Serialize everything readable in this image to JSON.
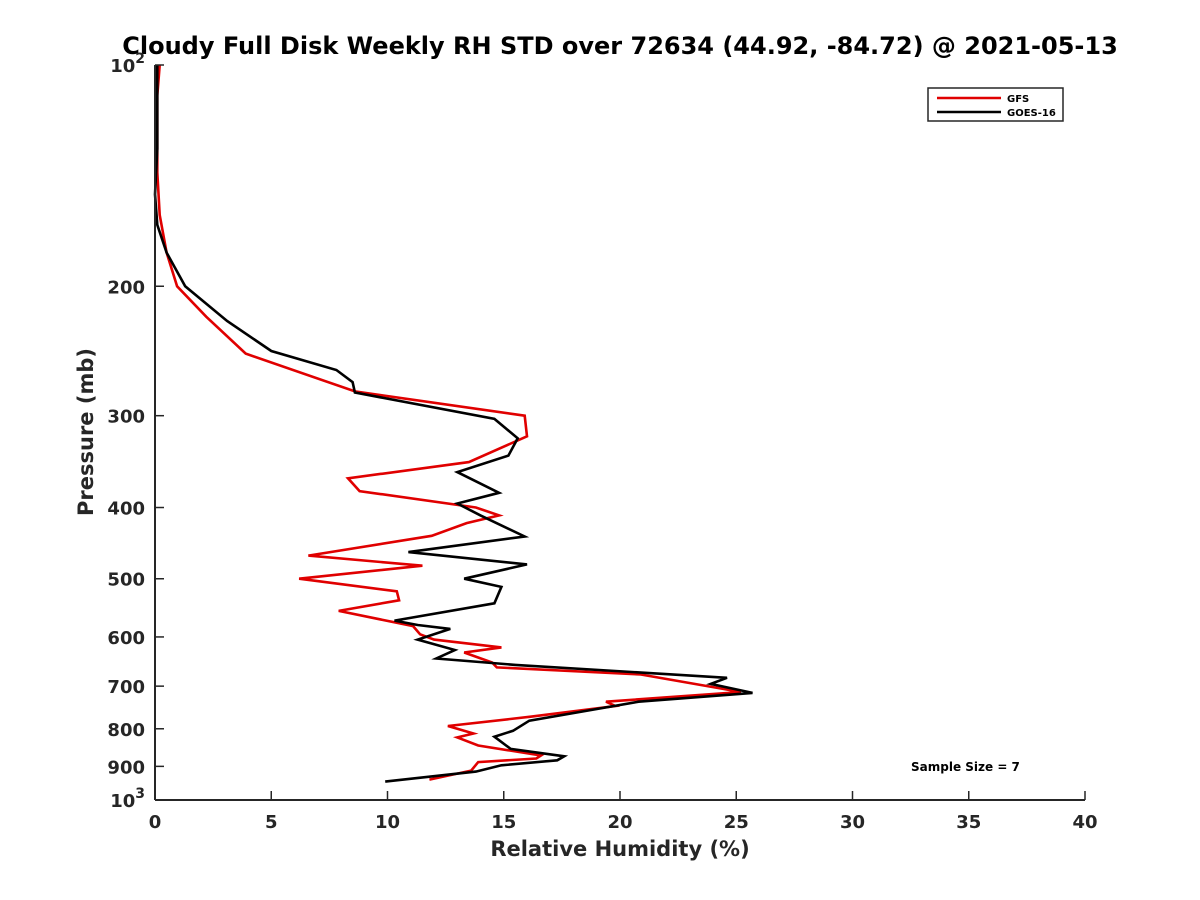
{
  "chart_data": {
    "type": "line",
    "title": "Cloudy Full Disk Weekly RH STD over 72634 (44.92, -84.72) @ 2021-05-13",
    "xlabel": "Relative Humidity (%)",
    "ylabel": "Pressure (mb)",
    "xlim": [
      0,
      40
    ],
    "ylim": [
      100,
      1000
    ],
    "yscale": "log",
    "y_reversed": true,
    "grid": false,
    "legend_position": "top-right",
    "x_ticks": [
      "0",
      "5",
      "10",
      "15",
      "20",
      "25",
      "30",
      "35",
      "40"
    ],
    "y_ticks": [
      {
        "value": 100,
        "base": "10",
        "exp": "2"
      },
      {
        "value": 200,
        "label": "200"
      },
      {
        "value": 300,
        "label": "300"
      },
      {
        "value": 400,
        "label": "400"
      },
      {
        "value": 500,
        "label": "500"
      },
      {
        "value": 600,
        "label": "600"
      },
      {
        "value": 700,
        "label": "700"
      },
      {
        "value": 800,
        "label": "800"
      },
      {
        "value": 900,
        "label": "900"
      },
      {
        "value": 1000,
        "base": "10",
        "exp": "3"
      }
    ],
    "series": [
      {
        "name": "GFS",
        "color": "#e00000",
        "points": [
          [
            0.2,
            100
          ],
          [
            0.1,
            110
          ],
          [
            0.1,
            125
          ],
          [
            0.1,
            140
          ],
          [
            0.2,
            160
          ],
          [
            0.5,
            180
          ],
          [
            0.95,
            200
          ],
          [
            2.2,
            220
          ],
          [
            3.9,
            247
          ],
          [
            8.6,
            278
          ],
          [
            15.9,
            300
          ],
          [
            16.0,
            320
          ],
          [
            13.5,
            347
          ],
          [
            8.3,
            365
          ],
          [
            8.8,
            380
          ],
          [
            13.8,
            400
          ],
          [
            14.8,
            410
          ],
          [
            13.4,
            420
          ],
          [
            11.9,
            437
          ],
          [
            6.6,
            465
          ],
          [
            11.5,
            480
          ],
          [
            6.2,
            500
          ],
          [
            10.4,
            520
          ],
          [
            10.5,
            535
          ],
          [
            7.9,
            553
          ],
          [
            11.1,
            580
          ],
          [
            11.4,
            595
          ],
          [
            12.0,
            605
          ],
          [
            14.9,
            620
          ],
          [
            13.3,
            630
          ],
          [
            14.5,
            650
          ],
          [
            14.7,
            660
          ],
          [
            20.9,
            675
          ],
          [
            25.2,
            713
          ],
          [
            19.4,
            735
          ],
          [
            19.8,
            745
          ],
          [
            16.2,
            770
          ],
          [
            12.6,
            793
          ],
          [
            13.7,
            812
          ],
          [
            13.0,
            822
          ],
          [
            13.9,
            843
          ],
          [
            16.6,
            870
          ],
          [
            16.4,
            878
          ],
          [
            13.9,
            888
          ],
          [
            13.6,
            912
          ],
          [
            11.8,
            938
          ]
        ]
      },
      {
        "name": "GOES-16",
        "color": "#000000",
        "points": [
          [
            0.1,
            100
          ],
          [
            0.1,
            115
          ],
          [
            0.1,
            130
          ],
          [
            0.0,
            150
          ],
          [
            0.1,
            165
          ],
          [
            0.5,
            180
          ],
          [
            1.3,
            200
          ],
          [
            3.1,
            223
          ],
          [
            5.0,
            245
          ],
          [
            7.8,
            260
          ],
          [
            8.5,
            270
          ],
          [
            8.6,
            279
          ],
          [
            14.6,
            303
          ],
          [
            15.6,
            322
          ],
          [
            15.2,
            340
          ],
          [
            13.0,
            358
          ],
          [
            14.8,
            382
          ],
          [
            13.0,
            395
          ],
          [
            14.0,
            410
          ],
          [
            15.9,
            438
          ],
          [
            10.9,
            460
          ],
          [
            16.0,
            478
          ],
          [
            13.3,
            500
          ],
          [
            14.9,
            513
          ],
          [
            14.6,
            540
          ],
          [
            10.3,
            570
          ],
          [
            11.3,
            578
          ],
          [
            12.7,
            585
          ],
          [
            11.3,
            605
          ],
          [
            12.9,
            625
          ],
          [
            12.1,
            642
          ],
          [
            15.5,
            655
          ],
          [
            24.6,
            682
          ],
          [
            23.9,
            695
          ],
          [
            25.7,
            715
          ],
          [
            20.8,
            735
          ],
          [
            16.1,
            780
          ],
          [
            15.4,
            805
          ],
          [
            14.6,
            820
          ],
          [
            15.1,
            843
          ],
          [
            15.3,
            852
          ],
          [
            17.6,
            872
          ],
          [
            17.3,
            883
          ],
          [
            14.9,
            897
          ],
          [
            13.8,
            915
          ],
          [
            9.9,
            944
          ]
        ]
      }
    ],
    "annotation": "Sample Size = 7"
  }
}
